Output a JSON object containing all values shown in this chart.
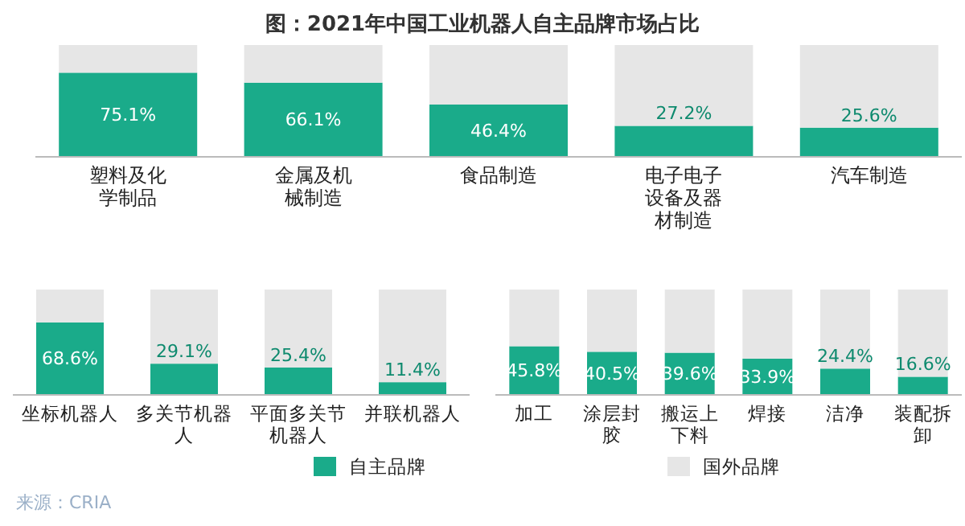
{
  "chart_data": [
    {
      "type": "bar",
      "stacked": true,
      "title": "图：2021年中国工业机器人自主品牌市场占比",
      "categories": [
        "塑料及化学制品",
        "金属及机械制造",
        "食品制造",
        "电子电子设备及器材制造",
        "汽车制造"
      ],
      "ylim": [
        0,
        100
      ],
      "series": [
        {
          "color": "#1aab8a",
          "values": [
            75.1,
            66.1,
            46.4,
            27.2,
            25.6
          ],
          "value_labels": [
            "75.1%",
            "66.1%",
            "46.4%",
            "27.2%",
            "25.6%"
          ]
        },
        {
          "color": "#e6e6e6",
          "values": [
            24.9,
            33.9,
            53.6,
            72.8,
            74.4
          ]
        }
      ]
    },
    {
      "type": "bar",
      "stacked": true,
      "categories": [
        "坐标机器人",
        "多关节机器人",
        "平面多关节机器人",
        "并联机器人"
      ],
      "ylim": [
        0,
        100
      ],
      "legend": "bottom",
      "series": [
        {
          "name": "自主品牌",
          "color": "#1aab8a",
          "values": [
            68.6,
            29.1,
            25.4,
            11.4
          ],
          "value_labels": [
            "68.6%",
            "29.1%",
            "25.4%",
            "11.4%"
          ]
        },
        {
          "name": "国外品牌",
          "color": "#e6e6e6",
          "values": [
            31.4,
            70.9,
            74.6,
            88.6
          ]
        }
      ]
    },
    {
      "type": "bar",
      "stacked": true,
      "categories": [
        "加工",
        "涂层封胶",
        "搬运上下料",
        "焊接",
        "洁净",
        "装配拆卸"
      ],
      "ylim": [
        0,
        100
      ],
      "annotations": [
        "来源：CRIA"
      ],
      "series": [
        {
          "color": "#1aab8a",
          "values": [
            45.8,
            40.5,
            39.6,
            33.9,
            24.4,
            16.6
          ],
          "value_labels": [
            "45.8%",
            "40.5%",
            "39.6%",
            "33.9%",
            "24.4%",
            "16.6%"
          ]
        },
        {
          "color": "#e6e6e6",
          "values": [
            54.2,
            59.5,
            60.4,
            66.1,
            75.6,
            83.4
          ]
        }
      ]
    }
  ]
}
